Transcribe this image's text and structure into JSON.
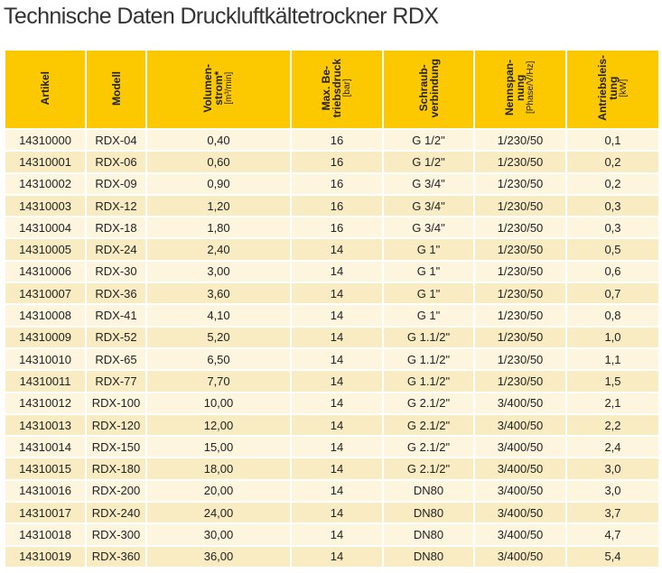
{
  "title": "Technische Daten Druckluftkältetrockner RDX",
  "table": {
    "header": [
      [
        "Artikel"
      ],
      [
        "Modell"
      ],
      [
        "Volumen-",
        "strom*",
        "[m³/min]"
      ],
      [
        "Max. Be-",
        "triebsdruck",
        "[bar]"
      ],
      [
        "Schraub-",
        "verbindung"
      ],
      [
        "Nennspan-",
        "nung",
        "[Phase/V/Hz]"
      ],
      [
        "Antriebsleis-",
        "tung",
        "[kW]"
      ]
    ],
    "rows": [
      [
        "14310000",
        "RDX-04",
        "0,40",
        "16",
        "G 1/2\"",
        "1/230/50",
        "0,1"
      ],
      [
        "14310001",
        "RDX-06",
        "0,60",
        "16",
        "G 1/2\"",
        "1/230/50",
        "0,2"
      ],
      [
        "14310002",
        "RDX-09",
        "0,90",
        "16",
        "G 3/4\"",
        "1/230/50",
        "0,2"
      ],
      [
        "14310003",
        "RDX-12",
        "1,20",
        "16",
        "G 3/4\"",
        "1/230/50",
        "0,3"
      ],
      [
        "14310004",
        "RDX-18",
        "1,80",
        "16",
        "G 3/4\"",
        "1/230/50",
        "0,3"
      ],
      [
        "14310005",
        "RDX-24",
        "2,40",
        "14",
        "G 1\"",
        "1/230/50",
        "0,5"
      ],
      [
        "14310006",
        "RDX-30",
        "3,00",
        "14",
        "G 1\"",
        "1/230/50",
        "0,6"
      ],
      [
        "14310007",
        "RDX-36",
        "3,60",
        "14",
        "G 1\"",
        "1/230/50",
        "0,7"
      ],
      [
        "14310008",
        "RDX-41",
        "4,10",
        "14",
        "G 1\"",
        "1/230/50",
        "0,8"
      ],
      [
        "14310009",
        "RDX-52",
        "5,20",
        "14",
        "G 1.1/2\"",
        "1/230/50",
        "1,0"
      ],
      [
        "14310010",
        "RDX-65",
        "6,50",
        "14",
        "G 1.1/2\"",
        "1/230/50",
        "1,1"
      ],
      [
        "14310011",
        "RDX-77",
        "7,70",
        "14",
        "G 1.1/2\"",
        "1/230/50",
        "1,5"
      ],
      [
        "14310012",
        "RDX-100",
        "10,00",
        "14",
        "G 2.1/2\"",
        "3/400/50",
        "2,1"
      ],
      [
        "14310013",
        "RDX-120",
        "12,00",
        "14",
        "G 2.1/2\"",
        "3/400/50",
        "2,2"
      ],
      [
        "14310014",
        "RDX-150",
        "15,00",
        "14",
        "G 2.1/2\"",
        "3/400/50",
        "2,4"
      ],
      [
        "14310015",
        "RDX-180",
        "18,00",
        "14",
        "G 2.1/2\"",
        "3/400/50",
        "3,0"
      ],
      [
        "14310016",
        "RDX-200",
        "20,00",
        "14",
        "DN80",
        "3/400/50",
        "3,0"
      ],
      [
        "14310017",
        "RDX-240",
        "24,00",
        "14",
        "DN80",
        "3/400/50",
        "3,7"
      ],
      [
        "14310018",
        "RDX-300",
        "30,00",
        "14",
        "DN80",
        "3/400/50",
        "4,7"
      ],
      [
        "14310019",
        "RDX-360",
        "36,00",
        "14",
        "DN80",
        "3/400/50",
        "5,4"
      ]
    ]
  }
}
